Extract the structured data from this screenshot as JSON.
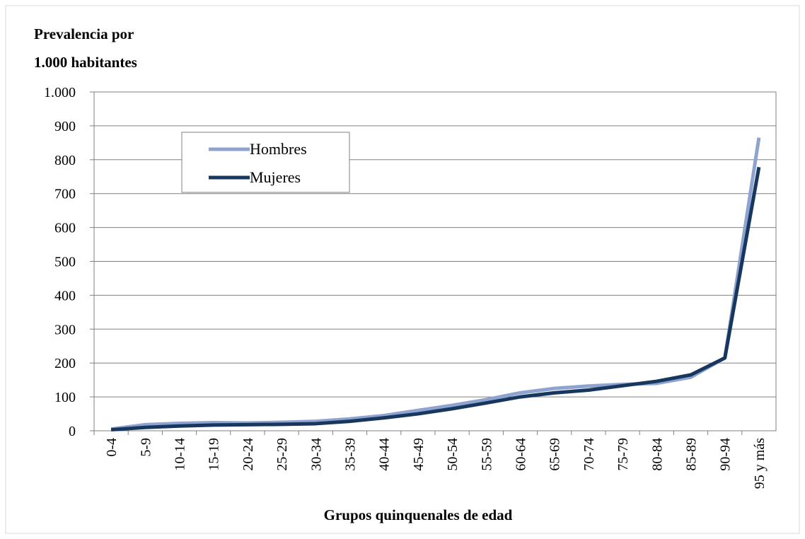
{
  "chart_data": {
    "type": "line",
    "title_lines": [
      "Prevalencia por",
      "1.000 habitantes"
    ],
    "x_label": "Grupos quinquenales de edad",
    "categories": [
      "0-4",
      "5-9",
      "10-14",
      "15-19",
      "20-24",
      "25-29",
      "30-34",
      "35-39",
      "40-44",
      "45-49",
      "50-54",
      "55-59",
      "60-64",
      "65-69",
      "70-74",
      "75-79",
      "80-84",
      "85-89",
      "90-94",
      "95 y más"
    ],
    "series": [
      {
        "name": "Hombres",
        "color": "#8ea3d0",
        "values": [
          5,
          18,
          22,
          24,
          23,
          25,
          28,
          35,
          45,
          60,
          75,
          92,
          112,
          125,
          132,
          137,
          140,
          158,
          215,
          865
        ]
      },
      {
        "name": "Mujeres",
        "color": "#17375e",
        "values": [
          3,
          10,
          14,
          17,
          18,
          19,
          21,
          28,
          38,
          50,
          65,
          82,
          100,
          112,
          120,
          133,
          146,
          165,
          215,
          778
        ]
      }
    ],
    "ylim": [
      0,
      1000
    ],
    "yticks": [
      0,
      100,
      200,
      300,
      400,
      500,
      600,
      700,
      800,
      900,
      {
        "value": 1000,
        "label": "1.000"
      }
    ],
    "grid": true,
    "legend": "upper-left"
  }
}
